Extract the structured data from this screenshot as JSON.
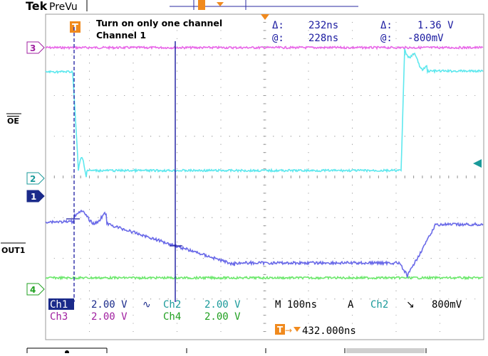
{
  "header": {
    "brand": "Tek",
    "mode": "PreVu"
  },
  "annotation": {
    "line1": "Turn on only one channel",
    "line2": "Channel 1"
  },
  "cursor_readout": {
    "delta_label": "Δ:",
    "delta_time": "232ns",
    "delta_volt_label": "Δ:",
    "delta_volt": "1.36 V",
    "at_label": "@:",
    "at_time": "228ns",
    "at_volt_label": "@:",
    "at_volt": "-800mV"
  },
  "signal_labels": {
    "oe": "OE",
    "out1": "OUT1"
  },
  "channel_markers": {
    "ch1": "1",
    "ch2": "2",
    "ch3": "3",
    "ch4": "4"
  },
  "status": {
    "ch1_label": "Ch1",
    "ch1_scale": "2.00 V",
    "ch1_coupling": "∿",
    "ch2_label": "Ch2",
    "ch2_scale": "2.00 V",
    "ch3_label": "Ch3",
    "ch3_scale": "2.00 V",
    "ch4_label": "Ch4",
    "ch4_scale": "2.00 V",
    "timebase": "M 100ns",
    "trigger_mode": "A",
    "trigger_source": "Ch2",
    "trigger_slope": "↘",
    "trigger_level": "800mV",
    "trigger_position": "432.000ns"
  },
  "colors": {
    "ch1": "#6a6ae8",
    "ch2": "#5ee8ee",
    "ch3": "#e868e8",
    "ch4": "#6ee86e",
    "cursor": "#1a1aa0",
    "trigger": "#f08a1e",
    "ch1_dark": "#1a2a8a",
    "ch2_dark": "#1a9a9a",
    "ch3_dark": "#a020a0",
    "ch4_dark": "#20a020"
  }
}
